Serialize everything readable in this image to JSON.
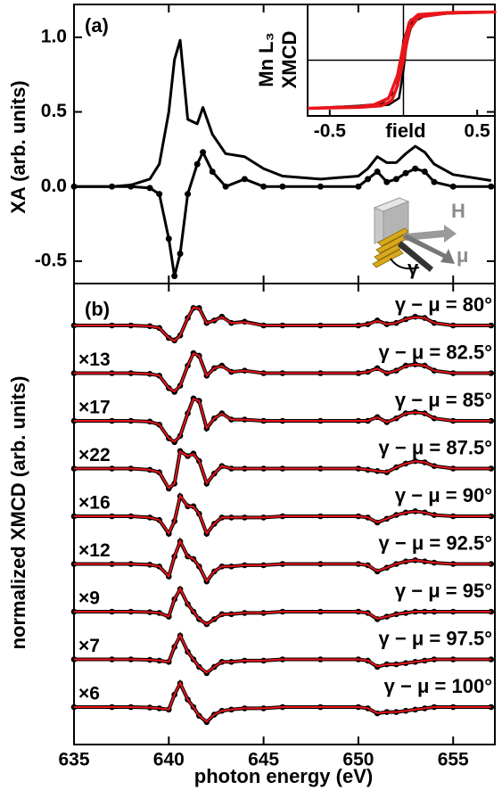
{
  "chart_data": [
    {
      "type": "line",
      "panel_label": "(a)",
      "ylabel": "XA (arb. units)",
      "x": [
        635,
        637,
        638,
        639,
        639.5,
        640,
        640.3,
        640.6,
        641,
        641.5,
        641.8,
        642.3,
        643,
        644,
        645,
        646,
        648,
        650,
        650.5,
        651,
        651.5,
        652,
        652.5,
        653,
        653.5,
        654,
        655,
        657
      ],
      "series": [
        {
          "style": "line",
          "color": "#000000",
          "values": [
            0,
            0,
            0.01,
            0.05,
            0.15,
            0.5,
            0.85,
            0.98,
            0.45,
            0.42,
            0.53,
            0.35,
            0.22,
            0.2,
            0.12,
            0.07,
            0.05,
            0.07,
            0.12,
            0.2,
            0.16,
            0.16,
            0.22,
            0.27,
            0.23,
            0.15,
            0.08,
            0.04
          ]
        },
        {
          "style": "dots",
          "color": "#000000",
          "values": [
            0,
            0,
            0,
            -0.01,
            -0.05,
            -0.35,
            -0.6,
            -0.45,
            -0.05,
            0.15,
            0.23,
            0.1,
            0,
            0.05,
            0,
            0,
            0,
            0,
            0.05,
            0.1,
            0.03,
            0.05,
            0.09,
            0.12,
            0.1,
            0.03,
            0,
            0
          ]
        }
      ],
      "xlim": [
        635,
        657.2
      ],
      "ylim": [
        -0.65,
        1.22
      ],
      "xticks": [
        635,
        640,
        645,
        650,
        655
      ],
      "yticks": [
        -0.5,
        {
          "value": 0,
          "label": "0.0"
        },
        0.5,
        {
          "value": 1,
          "label": "1.0"
        }
      ],
      "annotations": [
        "H",
        "μ",
        "γ"
      ]
    },
    {
      "type": "line",
      "ylabel": [
        "Mn L₃",
        "XMCD"
      ],
      "xlabel": "field",
      "xlim": [
        -0.65,
        0.62
      ],
      "ylim": [
        -1.1,
        1.1
      ],
      "xticks": [
        -0.5,
        0.5
      ],
      "series": [
        {
          "color": "#000000",
          "width": 2.5,
          "x": [
            -0.65,
            -0.3,
            -0.1,
            -0.03,
            0,
            0.02,
            0.06,
            0.15,
            0.3,
            0.62,
            0.3,
            0.15,
            0.05,
            0,
            -0.02,
            -0.05,
            -0.15,
            -0.3,
            -0.65
          ],
          "values": [
            -0.95,
            -0.92,
            -0.88,
            -0.75,
            -0.2,
            0.3,
            0.75,
            0.88,
            0.92,
            0.95,
            0.93,
            0.9,
            0.8,
            0.4,
            -0.1,
            -0.6,
            -0.86,
            -0.9,
            -0.95
          ]
        },
        {
          "color": "#e8151b",
          "width": 3.5,
          "x": [
            -0.65,
            -0.3,
            -0.15,
            -0.08,
            -0.04,
            0,
            0.04,
            0.1,
            0.3,
            0.62,
            0.3,
            0.1,
            0.04,
            0,
            -0.04,
            -0.1,
            -0.2,
            -0.3,
            -0.65
          ],
          "values": [
            -0.95,
            -0.93,
            -0.9,
            -0.8,
            -0.5,
            0,
            0.6,
            0.85,
            0.93,
            0.95,
            0.94,
            0.9,
            0.75,
            0.3,
            -0.3,
            -0.75,
            -0.88,
            -0.92,
            -0.95
          ]
        }
      ]
    },
    {
      "type": "stacked-spectra",
      "panel_label": "(b)",
      "ylabel": "normalized XMCD (arb. units)",
      "xlabel": "photon energy (eV)",
      "color": "#000000",
      "fit_color": "#e8151b",
      "x": [
        635,
        637,
        638,
        639,
        639.5,
        640,
        640.3,
        640.6,
        641,
        641.3,
        641.6,
        642,
        642.4,
        642.8,
        643.3,
        644,
        645,
        646,
        648,
        650,
        650.5,
        651,
        651.5,
        652,
        652.5,
        653,
        653.5,
        654,
        655,
        657
      ],
      "xlim": [
        635,
        657.2
      ],
      "xticks": [
        635,
        640,
        645,
        650,
        655
      ],
      "series": [
        {
          "label": "γ − μ = 80°",
          "values": [
            0,
            0,
            0,
            -0.03,
            -0.1,
            -0.5,
            -0.6,
            -0.4,
            0.3,
            0.7,
            0.7,
            0.1,
            0.2,
            0.35,
            0.1,
            0.15,
            0,
            0,
            0,
            0,
            0.05,
            0.2,
            0.05,
            0.1,
            0.25,
            0.35,
            0.3,
            0.1,
            0,
            0
          ],
          "fit": [
            0,
            0,
            0,
            -0.03,
            -0.1,
            -0.5,
            -0.62,
            -0.4,
            0.3,
            0.72,
            0.68,
            0.1,
            0.2,
            0.33,
            0.1,
            0.13,
            0,
            0,
            0,
            0,
            0.05,
            0.18,
            0.05,
            0.1,
            0.25,
            0.33,
            0.3,
            0.1,
            0,
            0
          ]
        },
        {
          "label": "γ − μ = 82.5°",
          "multiplier": "×13",
          "values": [
            0,
            0,
            0,
            -0.03,
            -0.1,
            -0.6,
            -0.75,
            -0.5,
            0.3,
            0.8,
            0.7,
            -0.1,
            0.2,
            0.3,
            0.05,
            0.1,
            0,
            0,
            0,
            0,
            0.05,
            0.2,
            0,
            0.1,
            0.3,
            0.35,
            0.3,
            0.1,
            0,
            0
          ],
          "fit": [
            0,
            0,
            0,
            -0.03,
            -0.1,
            -0.6,
            -0.73,
            -0.5,
            0.3,
            0.78,
            0.7,
            -0.1,
            0.2,
            0.28,
            0.05,
            0.1,
            0,
            0,
            0,
            0,
            0.05,
            0.18,
            0,
            0.1,
            0.28,
            0.35,
            0.3,
            0.1,
            0,
            0
          ]
        },
        {
          "label": "γ − μ = 85°",
          "multiplier": "×17",
          "values": [
            0,
            0,
            0,
            -0.03,
            -0.15,
            -0.7,
            -0.85,
            -0.6,
            0.3,
            0.9,
            0.8,
            -0.3,
            0.1,
            0.3,
            0.05,
            0.05,
            0,
            0,
            0,
            0,
            0,
            0.15,
            -0.05,
            0.1,
            0.3,
            0.35,
            0.3,
            0.1,
            0,
            0
          ],
          "fit": [
            0,
            0,
            0,
            -0.03,
            -0.15,
            -0.7,
            -0.83,
            -0.6,
            0.3,
            0.88,
            0.8,
            -0.28,
            0.1,
            0.28,
            0.05,
            0.05,
            0,
            0,
            0,
            0,
            0,
            0.14,
            -0.05,
            0.1,
            0.3,
            0.34,
            0.3,
            0.1,
            0,
            0
          ]
        },
        {
          "label": "γ − μ = 87.5°",
          "multiplier": "×22",
          "values": [
            0,
            0,
            0,
            -0.05,
            -0.15,
            -0.8,
            -0.6,
            0.7,
            0.5,
            0.6,
            0.3,
            -0.6,
            -0.2,
            0.1,
            0,
            0,
            0,
            0,
            0,
            0,
            -0.05,
            -0.1,
            -0.15,
            0.05,
            0.2,
            0.3,
            0.25,
            0.1,
            0,
            0
          ],
          "fit": [
            0,
            0,
            0,
            -0.05,
            -0.15,
            -0.78,
            -0.6,
            0.68,
            0.5,
            0.58,
            0.3,
            -0.58,
            -0.2,
            0.1,
            0,
            0,
            0,
            0,
            0,
            0,
            -0.05,
            -0.1,
            -0.14,
            0.05,
            0.2,
            0.29,
            0.25,
            0.1,
            0,
            0
          ]
        },
        {
          "label": "γ − μ = 90°",
          "multiplier": "×16",
          "values": [
            0,
            0,
            0,
            -0.05,
            -0.15,
            -0.7,
            -0.2,
            0.8,
            0.4,
            0.4,
            0.1,
            -0.7,
            -0.3,
            -0.05,
            -0.05,
            -0.05,
            -0.05,
            0,
            0,
            0,
            -0.05,
            -0.25,
            -0.1,
            0.05,
            0.15,
            0.2,
            0.15,
            0.05,
            0,
            0
          ],
          "fit": [
            0,
            0,
            0,
            -0.05,
            -0.15,
            -0.68,
            -0.2,
            0.82,
            0.4,
            0.38,
            0.1,
            -0.68,
            -0.3,
            -0.05,
            -0.05,
            -0.05,
            -0.05,
            0,
            0,
            0,
            -0.05,
            -0.24,
            -0.1,
            0.05,
            0.15,
            0.19,
            0.15,
            0.05,
            0,
            0
          ]
        },
        {
          "label": "γ − μ = 92.5°",
          "multiplier": "×12",
          "values": [
            0,
            0,
            0,
            -0.03,
            -0.1,
            -0.5,
            0.3,
            0.9,
            0.3,
            0.2,
            -0.1,
            -0.7,
            -0.3,
            -0.1,
            -0.1,
            -0.05,
            -0.05,
            0,
            0,
            0,
            -0.05,
            -0.3,
            -0.15,
            0,
            0.1,
            0.15,
            0.1,
            0.05,
            0,
            0
          ],
          "fit": [
            0,
            0,
            0,
            -0.03,
            -0.1,
            -0.5,
            0.3,
            0.92,
            0.3,
            0.2,
            -0.1,
            -0.68,
            -0.3,
            -0.1,
            -0.1,
            -0.05,
            -0.05,
            0,
            0,
            0,
            -0.05,
            -0.28,
            -0.15,
            0,
            0.1,
            0.15,
            0.1,
            0.05,
            0,
            0
          ]
        },
        {
          "label": "γ − μ = 95°",
          "multiplier": "×9",
          "values": [
            0,
            0,
            0,
            -0.02,
            -0.05,
            -0.2,
            0.5,
            0.9,
            0.3,
            0,
            -0.3,
            -0.5,
            -0.3,
            -0.1,
            -0.1,
            -0.05,
            -0.05,
            0,
            0,
            0,
            -0.05,
            -0.3,
            -0.2,
            -0.1,
            -0.05,
            0,
            0,
            0,
            0,
            0
          ],
          "fit": [
            0,
            0,
            0,
            -0.02,
            -0.05,
            -0.2,
            0.5,
            0.92,
            0.3,
            0,
            -0.3,
            -0.5,
            -0.3,
            -0.1,
            -0.1,
            -0.05,
            -0.05,
            0,
            0,
            0,
            -0.05,
            -0.28,
            -0.2,
            -0.1,
            -0.05,
            0,
            0,
            0,
            0,
            0
          ]
        },
        {
          "label": "γ − μ = 97.5°",
          "multiplier": "×7",
          "values": [
            0,
            0,
            0,
            -0.02,
            -0.05,
            -0.1,
            0.5,
            0.95,
            0.3,
            0,
            -0.3,
            -0.55,
            -0.3,
            -0.1,
            -0.1,
            -0.05,
            -0.05,
            0,
            0,
            0,
            -0.05,
            -0.3,
            -0.2,
            -0.2,
            -0.15,
            -0.1,
            -0.05,
            0,
            0,
            0
          ],
          "fit": [
            0,
            0,
            0,
            -0.02,
            -0.05,
            -0.1,
            0.5,
            0.97,
            0.3,
            0,
            -0.3,
            -0.53,
            -0.3,
            -0.1,
            -0.1,
            -0.05,
            -0.05,
            0,
            0,
            0,
            -0.05,
            -0.28,
            -0.2,
            -0.2,
            -0.15,
            -0.1,
            -0.05,
            0,
            0,
            0
          ]
        },
        {
          "label": "γ − μ = 100°",
          "multiplier": "×6",
          "values": [
            0,
            0,
            0,
            -0.02,
            -0.05,
            -0.1,
            0.5,
            0.95,
            0.3,
            0,
            -0.35,
            -0.6,
            -0.3,
            -0.15,
            -0.1,
            -0.05,
            -0.05,
            0,
            0,
            0,
            -0.05,
            -0.25,
            -0.2,
            -0.2,
            -0.15,
            -0.1,
            -0.05,
            0,
            0,
            0
          ],
          "fit": [
            0,
            0,
            0,
            -0.02,
            -0.05,
            -0.1,
            0.5,
            0.97,
            0.3,
            0,
            -0.35,
            -0.58,
            -0.3,
            -0.15,
            -0.1,
            -0.05,
            -0.05,
            0,
            0,
            0,
            -0.05,
            -0.24,
            -0.2,
            -0.2,
            -0.15,
            -0.1,
            -0.05,
            0,
            0,
            0
          ]
        }
      ]
    }
  ]
}
